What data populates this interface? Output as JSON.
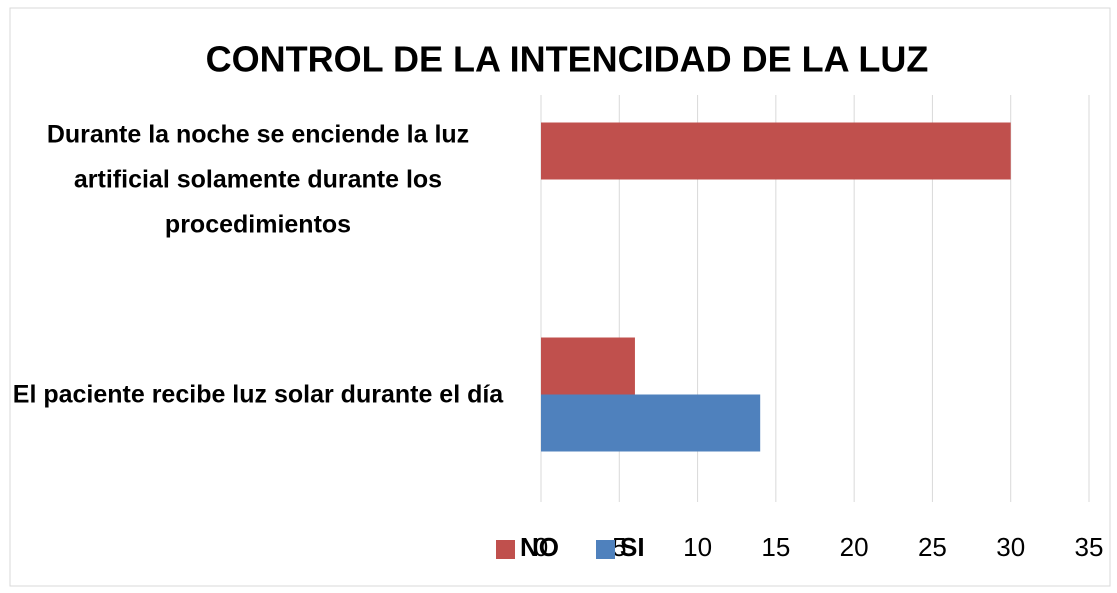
{
  "chart_data": {
    "type": "bar",
    "orientation": "horizontal",
    "title": "CONTROL DE LA INTENCIDAD DE LA LUZ",
    "categories": [
      "El paciente recibe luz solar durante el día",
      "Durante la noche se enciende la luz artificial solamente durante los procedimientos"
    ],
    "series": [
      {
        "name": "NO",
        "color": "#c0504d",
        "values": [
          6,
          30
        ]
      },
      {
        "name": "SI",
        "color": "#4f81bd",
        "values": [
          14,
          0
        ]
      }
    ],
    "xlim": [
      0,
      35
    ],
    "xticks": [
      0,
      5,
      10,
      15,
      20,
      25,
      30,
      35
    ],
    "grid": true,
    "legend": "bottom"
  }
}
